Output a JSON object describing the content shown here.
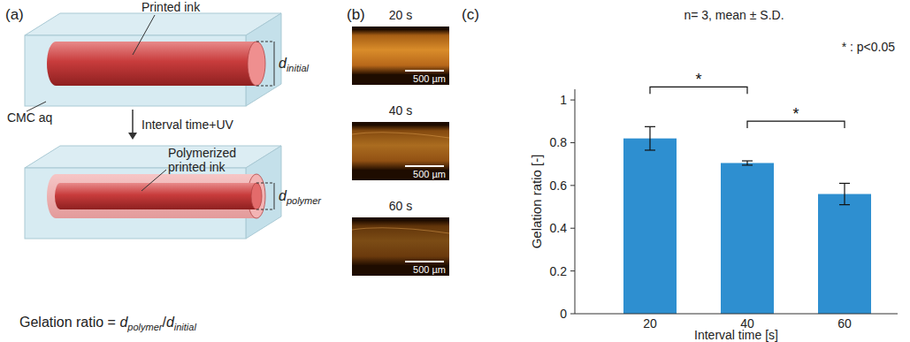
{
  "panel_a": {
    "label": "(a)",
    "top": {
      "ink": "Printed ink",
      "medium": "CMC aq",
      "dimension": {
        "main": "d",
        "sub": "initial"
      }
    },
    "process": "Interval time+UV",
    "bottom": {
      "ink_lines": [
        "Polymerized",
        "printed ink"
      ],
      "dimension": {
        "main": "d",
        "sub": "polymer"
      }
    },
    "formula": {
      "lhs": "Gelation ratio = ",
      "numerator": {
        "main": "d",
        "sub": "polymer"
      },
      "operator": "/",
      "denominator": {
        "main": "d",
        "sub": "initial"
      }
    }
  },
  "panel_b": {
    "label": "(b)",
    "images": [
      {
        "label": "20 s",
        "scale_bar": "500 µm"
      },
      {
        "label": "40 s",
        "scale_bar": "500 µm"
      },
      {
        "label": "60 s",
        "scale_bar": "500 µm"
      }
    ]
  },
  "chart_data": {
    "panel_label": "(c)",
    "type": "bar",
    "title": "n= 3, mean ± S.D.",
    "x_label": "Interval time [s]",
    "y_label": "Gelation ratio [-]",
    "categories": [
      "20",
      "40",
      "60"
    ],
    "values": [
      0.82,
      0.705,
      0.56
    ],
    "errors": [
      0.055,
      0.01,
      0.05
    ],
    "color": "#2e8fd0",
    "ylim": [
      0,
      1.05
    ],
    "yticks": [
      0,
      0.2,
      0.4,
      0.6,
      0.8,
      1
    ],
    "significance": [
      {
        "between": [
          "20",
          "40"
        ],
        "label": "*"
      },
      {
        "between": [
          "40",
          "60"
        ],
        "label": "*"
      }
    ],
    "significance_note": "* : p<0.05"
  }
}
